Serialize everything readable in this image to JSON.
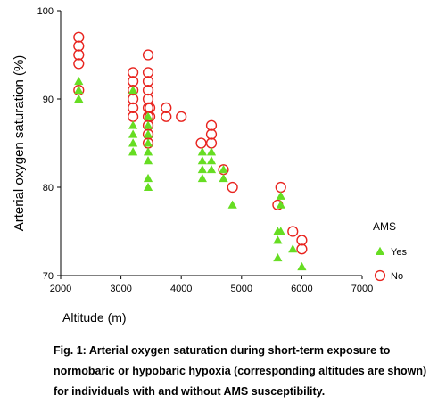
{
  "chart_data": {
    "type": "scatter",
    "xlabel": "Altitude (m)",
    "ylabel": "Arterial oxygen saturation (%)",
    "xlim": [
      2000,
      7000
    ],
    "ylim": [
      70,
      100
    ],
    "x_ticks": [
      2000,
      3000,
      4000,
      5000,
      6000,
      7000
    ],
    "y_ticks": [
      70,
      80,
      90,
      100
    ],
    "grid": false,
    "legend": {
      "title": "AMS",
      "position": "right"
    },
    "series": [
      {
        "name": "Yes",
        "marker": "filled-triangle",
        "color": "#66dd22",
        "points": [
          [
            2300,
            92
          ],
          [
            2300,
            91
          ],
          [
            2300,
            90
          ],
          [
            3200,
            91
          ],
          [
            3200,
            87
          ],
          [
            3200,
            86
          ],
          [
            3200,
            85
          ],
          [
            3200,
            84
          ],
          [
            3450,
            88
          ],
          [
            3450,
            87
          ],
          [
            3450,
            86
          ],
          [
            3450,
            85
          ],
          [
            3450,
            84
          ],
          [
            3450,
            83
          ],
          [
            3450,
            81
          ],
          [
            3450,
            80
          ],
          [
            4350,
            84
          ],
          [
            4350,
            83
          ],
          [
            4350,
            82
          ],
          [
            4350,
            81
          ],
          [
            4500,
            84
          ],
          [
            4500,
            83
          ],
          [
            4500,
            82
          ],
          [
            4700,
            82
          ],
          [
            4700,
            81
          ],
          [
            4850,
            78
          ],
          [
            5600,
            75
          ],
          [
            5600,
            74
          ],
          [
            5600,
            72
          ],
          [
            5650,
            79
          ],
          [
            5650,
            78
          ],
          [
            5650,
            75
          ],
          [
            5850,
            73
          ],
          [
            6000,
            71
          ]
        ]
      },
      {
        "name": "No",
        "marker": "open-circle",
        "color": "#e8231e",
        "points": [
          [
            2300,
            97
          ],
          [
            2300,
            96
          ],
          [
            2300,
            95
          ],
          [
            2300,
            94
          ],
          [
            2300,
            91
          ],
          [
            3200,
            93
          ],
          [
            3200,
            92
          ],
          [
            3200,
            91
          ],
          [
            3200,
            90
          ],
          [
            3200,
            89
          ],
          [
            3200,
            88
          ],
          [
            3450,
            95
          ],
          [
            3450,
            93
          ],
          [
            3450,
            92
          ],
          [
            3450,
            91
          ],
          [
            3450,
            90
          ],
          [
            3450,
            89
          ],
          [
            3450,
            88
          ],
          [
            3450,
            87
          ],
          [
            3450,
            86
          ],
          [
            3450,
            85
          ],
          [
            3480,
            89
          ],
          [
            3480,
            88
          ],
          [
            3750,
            89
          ],
          [
            3750,
            88
          ],
          [
            4000,
            88
          ],
          [
            4330,
            85
          ],
          [
            4500,
            87
          ],
          [
            4500,
            86
          ],
          [
            4500,
            85
          ],
          [
            4700,
            82
          ],
          [
            4850,
            80
          ],
          [
            5600,
            78
          ],
          [
            5650,
            80
          ],
          [
            5850,
            75
          ],
          [
            6000,
            74
          ],
          [
            6000,
            73
          ]
        ]
      }
    ]
  },
  "caption": "Fig. 1: Arterial oxygen saturation during short-term exposure to normobaric or hypobaric hypoxia (corresponding altitudes are shown) for individuals with and without AMS susceptibility."
}
